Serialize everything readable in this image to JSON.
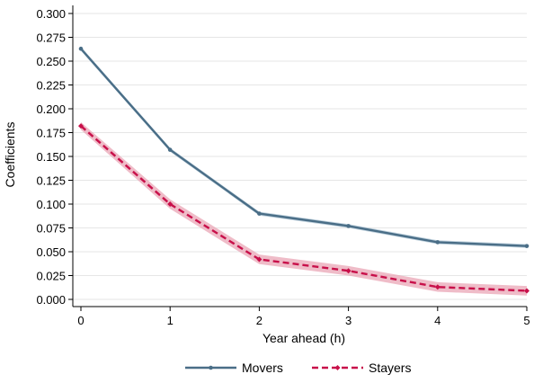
{
  "chart_data": {
    "type": "line",
    "title": "",
    "xlabel": "Year ahead (h)",
    "ylabel": "Coefficients",
    "x": [
      0,
      1,
      2,
      3,
      4,
      5
    ],
    "xlim": [
      0,
      5
    ],
    "ylim": [
      0,
      0.3
    ],
    "x_ticks": [
      0,
      1,
      2,
      3,
      4,
      5
    ],
    "y_ticks": [
      0.0,
      0.025,
      0.05,
      0.075,
      0.1,
      0.125,
      0.15,
      0.175,
      0.2,
      0.225,
      0.25,
      0.275,
      0.3
    ],
    "y_tick_labels": [
      "0.000",
      "0.025",
      "0.050",
      "0.075",
      "0.100",
      "0.125",
      "0.150",
      "0.175",
      "0.200",
      "0.225",
      "0.250",
      "0.275",
      "0.300"
    ],
    "x_tick_labels": [
      "0",
      "1",
      "2",
      "3",
      "4",
      "5"
    ],
    "grid": "horizontal",
    "legend_position": "bottom",
    "series": [
      {
        "name": "Movers",
        "values": [
          0.263,
          0.157,
          0.09,
          0.077,
          0.06,
          0.056
        ],
        "ci_lower": [
          0.261,
          0.155,
          0.088,
          0.075,
          0.058,
          0.054
        ],
        "ci_upper": [
          0.265,
          0.159,
          0.092,
          0.079,
          0.062,
          0.058
        ],
        "color": "#4a6e87",
        "band_color": "#a9c1d1",
        "line_style": "solid",
        "marker": "circle"
      },
      {
        "name": "Stayers",
        "values": [
          0.182,
          0.1,
          0.042,
          0.03,
          0.013,
          0.009
        ],
        "ci_lower": [
          0.178,
          0.095,
          0.037,
          0.025,
          0.008,
          0.004
        ],
        "ci_upper": [
          0.186,
          0.105,
          0.047,
          0.035,
          0.018,
          0.014
        ],
        "color": "#c8104a",
        "band_color": "#eaa6b6",
        "line_style": "dashed",
        "marker": "diamond"
      }
    ]
  }
}
